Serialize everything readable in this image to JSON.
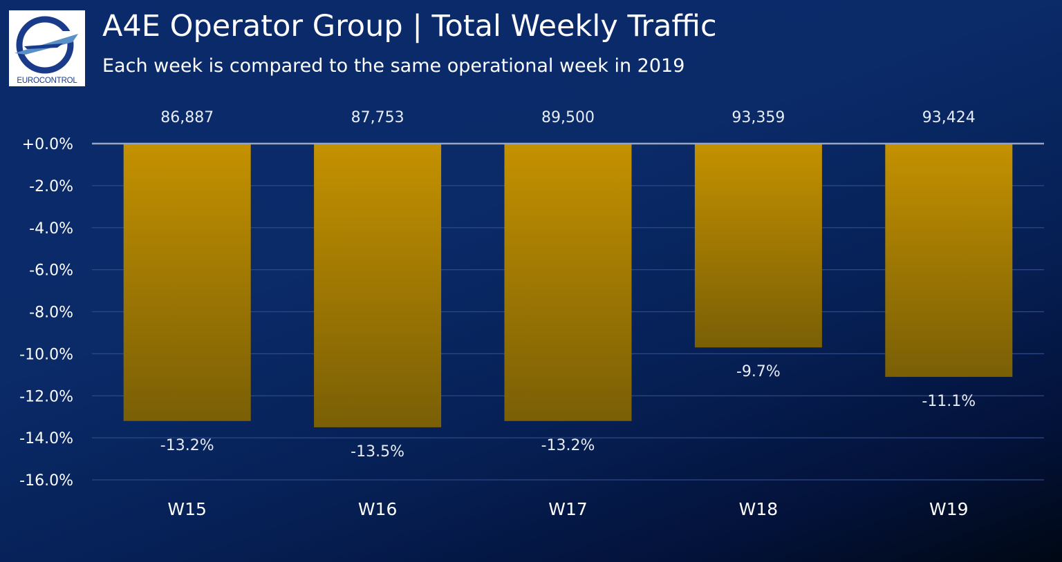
{
  "header": {
    "title": "A4E Operator Group | Total Weekly Traffic",
    "subtitle": "Each week is compared to the same operational week in 2019",
    "logo_text": "EUROCONTROL"
  },
  "colors": {
    "bar_top": "#c49100",
    "bar_bottom": "#7a5f06",
    "grid": "#2e4a86",
    "zero_line": "#9aa6c0",
    "text": "#ffffff",
    "label_muted": "#e8ecf5"
  },
  "chart_data": {
    "type": "bar",
    "categories": [
      "W15",
      "W16",
      "W17",
      "W18",
      "W19"
    ],
    "values": [
      -13.2,
      -13.5,
      -13.2,
      -9.7,
      -11.1
    ],
    "value_labels": [
      "-13.2%",
      "-13.5%",
      "-13.2%",
      "-9.7%",
      "-11.1%"
    ],
    "totals": [
      "86,887",
      "87,753",
      "89,500",
      "93,359",
      "93,424"
    ],
    "y_ticks": [
      "+0.0%",
      "-2.0%",
      "-4.0%",
      "-6.0%",
      "-8.0%",
      "-10.0%",
      "-12.0%",
      "-14.0%",
      "-16.0%"
    ],
    "ylim": [
      -16,
      0
    ],
    "grid": true,
    "title": "A4E Operator Group | Total Weekly Traffic",
    "subtitle": "Each week is compared to the same operational week in 2019",
    "xlabel": "",
    "ylabel": ""
  }
}
